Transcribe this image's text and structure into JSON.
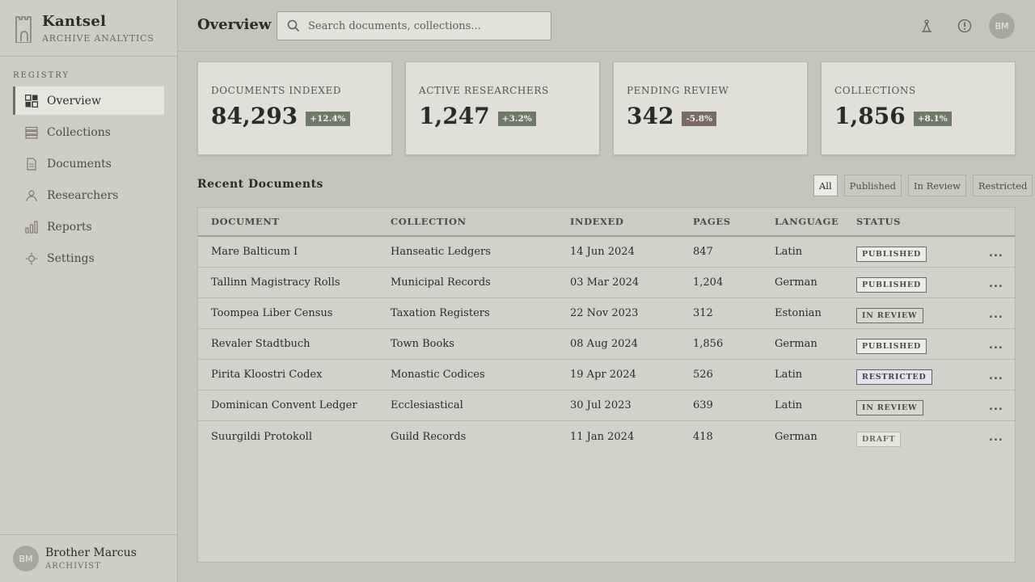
{
  "app": {
    "name": "Kantsel",
    "subtitle": "ARCHIVE ANALYTICS"
  },
  "sidebar": {
    "section_label": "REGISTRY",
    "items": [
      {
        "label": "Overview",
        "icon": "grid-icon"
      },
      {
        "label": "Collections",
        "icon": "stack-icon"
      },
      {
        "label": "Documents",
        "icon": "document-icon"
      },
      {
        "label": "Researchers",
        "icon": "person-icon"
      },
      {
        "label": "Reports",
        "icon": "bar-chart-icon"
      },
      {
        "label": "Settings",
        "icon": "gear-icon"
      }
    ],
    "active": "Overview"
  },
  "user": {
    "initials": "BM",
    "name": "Brother Marcus",
    "role": "ARCHIVIST"
  },
  "header": {
    "title": "Overview",
    "search_placeholder": "Search documents, collections...",
    "avatar_initials": "BM"
  },
  "stats": [
    {
      "label": "DOCUMENTS INDEXED",
      "value": "84,293",
      "delta": "+12.4%",
      "delta_color": "#6f7a66"
    },
    {
      "label": "ACTIVE RESEARCHERS",
      "value": "1,247",
      "delta": "+3.2%",
      "delta_color": "#6f7a66"
    },
    {
      "label": "PENDING REVIEW",
      "value": "342",
      "delta": "-5.8%",
      "delta_color": "#7b6966"
    },
    {
      "label": "COLLECTIONS",
      "value": "1,856",
      "delta": "+8.1%",
      "delta_color": "#6f7a66"
    }
  ],
  "recent": {
    "title": "Recent Documents",
    "filters": [
      "All",
      "Published",
      "In Review",
      "Restricted"
    ],
    "active_filter": "All",
    "columns": [
      "DOCUMENT",
      "COLLECTION",
      "INDEXED",
      "PAGES",
      "LANGUAGE",
      "STATUS"
    ],
    "rows": [
      {
        "document": "Mare Balticum I",
        "collection": "Hanseatic Ledgers",
        "indexed": "14 Jun 2024",
        "pages": "847",
        "language": "Latin",
        "status": "PUBLISHED"
      },
      {
        "document": "Tallinn Magistracy Rolls",
        "collection": "Municipal Records",
        "indexed": "03 Mar 2024",
        "pages": "1,204",
        "language": "German",
        "status": "PUBLISHED"
      },
      {
        "document": "Toompea Liber Census",
        "collection": "Taxation Registers",
        "indexed": "22 Nov 2023",
        "pages": "312",
        "language": "Estonian",
        "status": "IN REVIEW"
      },
      {
        "document": "Revaler Stadtbuch",
        "collection": "Town Books",
        "indexed": "08 Aug 2024",
        "pages": "1,856",
        "language": "German",
        "status": "PUBLISHED"
      },
      {
        "document": "Pirita Kloostri Codex",
        "collection": "Monastic Codices",
        "indexed": "19 Apr 2024",
        "pages": "526",
        "language": "Latin",
        "status": "RESTRICTED"
      },
      {
        "document": "Dominican Convent Ledger",
        "collection": "Ecclesiastical",
        "indexed": "30 Jul 2023",
        "pages": "639",
        "language": "Latin",
        "status": "IN REVIEW"
      },
      {
        "document": "Suurgildi Protokoll",
        "collection": "Guild Records",
        "indexed": "11 Jan 2024",
        "pages": "418",
        "language": "German",
        "status": "DRAFT"
      }
    ],
    "more_label": "..."
  }
}
